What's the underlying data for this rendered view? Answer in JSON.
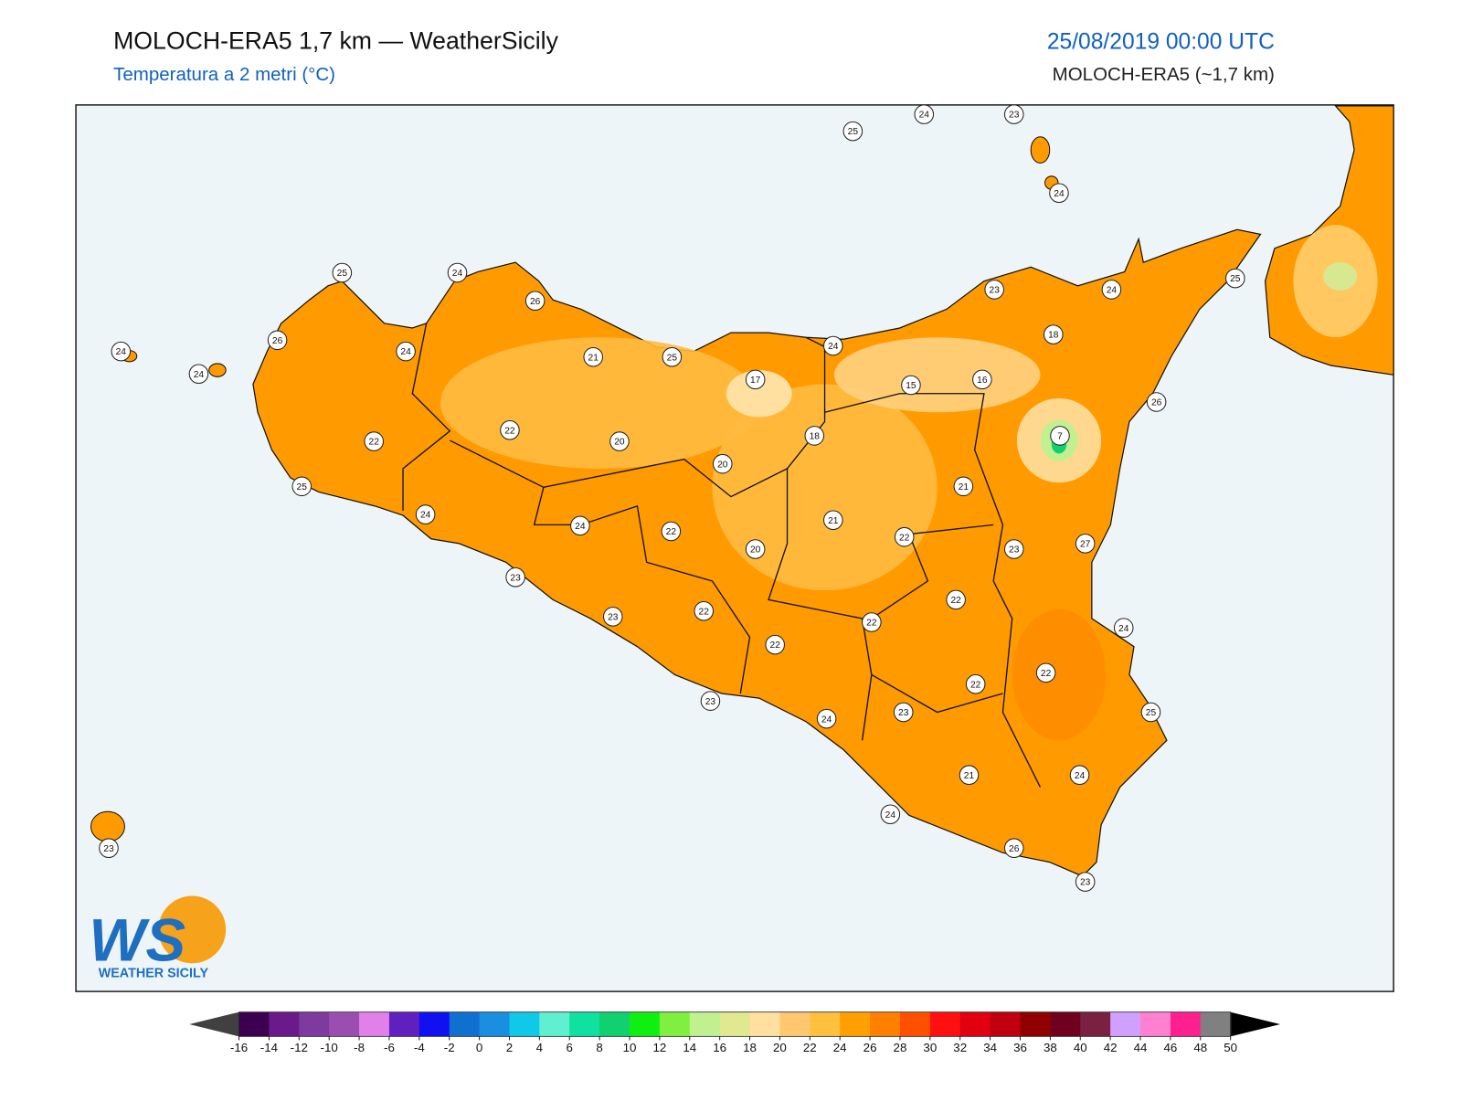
{
  "header": {
    "title": "MOLOCH-ERA5 1,7 km — WeatherSicily",
    "subtitle": "Temperatura a 2 metri (°C)",
    "datetime": "25/08/2019 00:00 UTC",
    "model": "MOLOCH-ERA5 (~1,7 km)"
  },
  "stations": [
    25,
    24,
    23,
    24,
    25,
    24,
    26,
    26,
    24,
    24,
    24,
    21,
    25,
    17,
    24,
    23,
    24,
    25,
    18,
    15,
    16,
    26,
    7,
    18,
    22,
    22,
    20,
    20,
    25,
    21,
    24,
    24,
    22,
    21,
    22,
    23,
    27,
    20,
    23,
    22,
    23,
    22,
    22,
    24,
    22,
    22,
    22,
    23,
    23,
    24,
    25,
    21,
    24,
    24,
    26,
    23,
    23
  ],
  "logo": {
    "mark": "WS",
    "name": "WEATHER SICILY"
  },
  "colorbar": {
    "ticks": [
      -16,
      -14,
      -12,
      -10,
      -8,
      -6,
      -4,
      -2,
      0,
      2,
      4,
      6,
      8,
      10,
      12,
      14,
      16,
      18,
      20,
      22,
      24,
      26,
      28,
      30,
      32,
      34,
      36,
      38,
      40,
      42,
      44,
      46,
      48,
      50
    ],
    "colors": [
      "#3d0050",
      "#6a1a8a",
      "#7e3a9e",
      "#9a4fb0",
      "#e080e8",
      "#6020c0",
      "#1010f0",
      "#1070d0",
      "#1a8fe0",
      "#10c8e8",
      "#60f0d0",
      "#10e0a0",
      "#10d070",
      "#10f010",
      "#80f040",
      "#c0f090",
      "#e0e890",
      "#ffe0a0",
      "#ffc870",
      "#ffc040",
      "#ffa000",
      "#ff8000",
      "#ff5000",
      "#ff1010",
      "#e00010",
      "#c00010",
      "#900000",
      "#700020",
      "#7a2040",
      "#d0a0ff",
      "#ff80d0",
      "#ff2090",
      "#808080",
      "#404040"
    ],
    "under_color": "#404040",
    "over_color": "#000000"
  }
}
